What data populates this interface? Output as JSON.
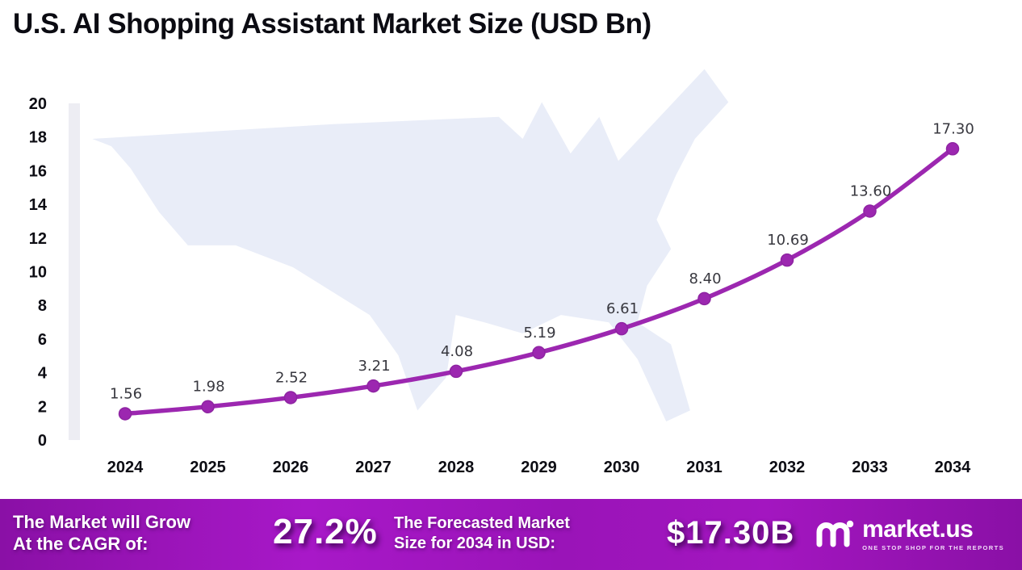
{
  "title": "U.S. AI Shopping Assistant Market Size (USD Bn)",
  "chart_data": {
    "type": "line",
    "title": "U.S. AI Shopping Assistant Market Size (USD Bn)",
    "categories": [
      "2024",
      "2025",
      "2026",
      "2027",
      "2028",
      "2029",
      "2030",
      "2031",
      "2032",
      "2033",
      "2034"
    ],
    "values": [
      1.56,
      1.98,
      2.52,
      3.21,
      4.08,
      5.19,
      6.61,
      8.4,
      10.69,
      13.6,
      17.3
    ],
    "point_labels": [
      "1.56",
      "1.98",
      "2.52",
      "3.21",
      "4.08",
      "5.19",
      "6.61",
      "8.40",
      "10.69",
      "13.60",
      "17.30"
    ],
    "xlabel": "",
    "ylabel": "",
    "ylim": [
      0,
      20
    ],
    "ytick_step": 2,
    "grid": false,
    "legend": "none",
    "line_color": "#9C27B0",
    "marker_color": "#9C27B0",
    "axis_strip_color": "#ededf3",
    "map_fill": "#E9EDF8"
  },
  "footer": {
    "cagr_label_line1": "The Market will Grow",
    "cagr_label_line2": "At the CAGR of:",
    "cagr_value": "27.2%",
    "forecast_label_line1": "The Forecasted Market",
    "forecast_label_line2": "Size for 2034 in USD:",
    "forecast_value": "$17.30B",
    "brand_name": "market.us",
    "brand_tagline": "ONE STOP SHOP FOR THE REPORTS"
  },
  "colors": {
    "footer_purple": "#9A14B8",
    "title_text": "#0b0b12",
    "data_label_text": "#38383f"
  }
}
